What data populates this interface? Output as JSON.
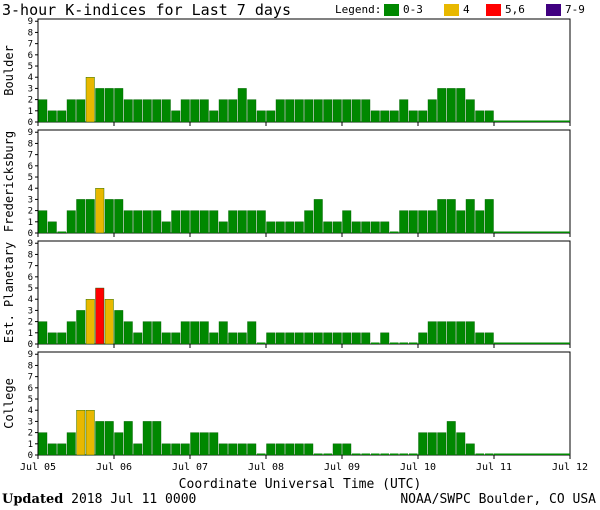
{
  "title": "3-hour K-indices for Last 7 days",
  "legend": {
    "label": "Legend:",
    "items": [
      {
        "label": "0-3",
        "color": "#008800"
      },
      {
        "label": "4",
        "color": "#e8b800"
      },
      {
        "label": "5,6",
        "color": "#ff0000"
      },
      {
        "label": "7-9",
        "color": "#400080"
      }
    ]
  },
  "footer": {
    "updated_label": "Updated",
    "updated_value": "2018 Jul 11 0000",
    "credit": "NOAA/SWPC Boulder, CO USA"
  },
  "chart_data": {
    "type": "bar",
    "xlabel": "Coordinate Universal Time (UTC)",
    "x_ticks": [
      "Jul 05",
      "Jul 06",
      "Jul 07",
      "Jul 08",
      "Jul 09",
      "Jul 10",
      "Jul 11",
      "Jul 12"
    ],
    "ylim": [
      0,
      9
    ],
    "y_ticks": [
      0,
      1,
      2,
      3,
      4,
      5,
      6,
      7,
      8,
      9
    ],
    "bins_per_day": 8,
    "days": 7,
    "color_scale": {
      "0-3": "#008800",
      "4": "#e8b800",
      "5-6": "#ff0000",
      "7-9": "#400080"
    },
    "series": [
      {
        "name": "Boulder",
        "values": [
          2,
          1,
          1,
          2,
          2,
          4,
          3,
          3,
          3,
          2,
          2,
          2,
          2,
          2,
          1,
          2,
          2,
          2,
          1,
          2,
          2,
          3,
          2,
          1,
          1,
          2,
          2,
          2,
          2,
          2,
          2,
          2,
          2,
          2,
          2,
          1,
          1,
          1,
          2,
          1,
          1,
          2,
          3,
          3,
          3,
          2,
          1,
          1
        ]
      },
      {
        "name": "Fredericksburg",
        "values": [
          2,
          1,
          0,
          2,
          3,
          3,
          4,
          3,
          3,
          2,
          2,
          2,
          2,
          1,
          2,
          2,
          2,
          2,
          2,
          1,
          2,
          2,
          2,
          2,
          1,
          1,
          1,
          1,
          2,
          3,
          1,
          1,
          2,
          1,
          1,
          1,
          1,
          0,
          2,
          2,
          2,
          2,
          3,
          3,
          2,
          3,
          2,
          3
        ]
      },
      {
        "name": "Est. Planetary",
        "values": [
          2,
          1,
          1,
          2,
          3,
          4,
          5,
          4,
          3,
          2,
          1,
          2,
          2,
          1,
          1,
          2,
          2,
          2,
          1,
          2,
          1,
          1,
          2,
          0,
          1,
          1,
          1,
          1,
          1,
          1,
          1,
          1,
          1,
          1,
          1,
          0,
          1,
          0,
          0,
          0,
          1,
          2,
          2,
          2,
          2,
          2,
          1,
          1
        ]
      },
      {
        "name": "College",
        "values": [
          2,
          1,
          1,
          2,
          4,
          4,
          3,
          3,
          2,
          3,
          1,
          3,
          3,
          1,
          1,
          1,
          2,
          2,
          2,
          1,
          1,
          1,
          1,
          0,
          1,
          1,
          1,
          1,
          1,
          0,
          0,
          1,
          1,
          0,
          0,
          0,
          0,
          0,
          0,
          0,
          2,
          2,
          2,
          3,
          2,
          1,
          0,
          0
        ]
      }
    ]
  }
}
